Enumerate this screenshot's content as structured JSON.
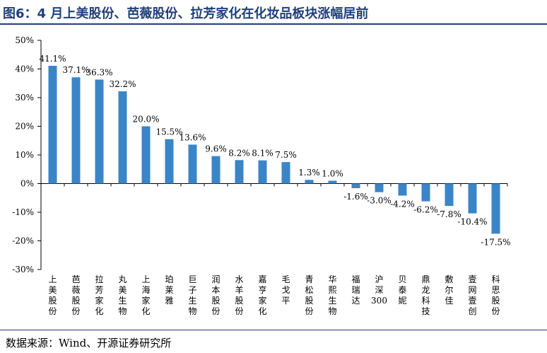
{
  "title": "图6：4 月上美股份、芭薇股份、拉芳家化在化妆品板块涨幅居前",
  "source": "数据来源：Wind、开源证券研究所",
  "colors": {
    "bar": "#3a85c7",
    "title": "#1f3f7a",
    "axis": "#000000"
  },
  "chart_data": {
    "type": "bar",
    "title": "图6：4 月上美股份、芭薇股份、拉芳家化在化妆品板块涨幅居前",
    "xlabel": "",
    "ylabel": "",
    "ylim": [
      -30,
      50
    ],
    "yticks": [
      50,
      40,
      30,
      20,
      10,
      0,
      -10,
      -20,
      -30
    ],
    "ytick_labels": [
      "50%",
      "40%",
      "30%",
      "20%",
      "10%",
      "0%",
      "-10%",
      "-20%",
      "-30%"
    ],
    "grid": false,
    "legend": "none",
    "categories": [
      "上美股份",
      "芭薇股份",
      "拉芳家化",
      "丸美生物",
      "上海家化",
      "珀莱雅",
      "巨子生物",
      "润本股份",
      "水羊股份",
      "嘉亨家化",
      "毛戈平",
      "青松股份",
      "华熙生物",
      "福瑞达",
      "沪深300",
      "贝泰妮",
      "鼎龙科技",
      "敷尔佳",
      "壹网壹创",
      "科思股份"
    ],
    "values": [
      41.1,
      37.1,
      36.3,
      32.2,
      20.0,
      15.5,
      13.6,
      9.6,
      8.2,
      8.1,
      7.5,
      1.3,
      1.0,
      -1.6,
      -3.0,
      -4.2,
      -6.2,
      -7.8,
      -10.4,
      -17.5
    ],
    "data_labels": [
      "41.1%",
      "37.1%",
      "36.3%",
      "32.2%",
      "20.0%",
      "15.5%",
      "13.6%",
      "9.6%",
      "8.2%",
      "8.1%",
      "7.5%",
      "1.3%",
      "1.0%",
      "-1.6%",
      "-3.0%",
      "-4.2%",
      "-6.2%",
      "-7.8%",
      "-10.4%",
      "-17.5%"
    ]
  }
}
